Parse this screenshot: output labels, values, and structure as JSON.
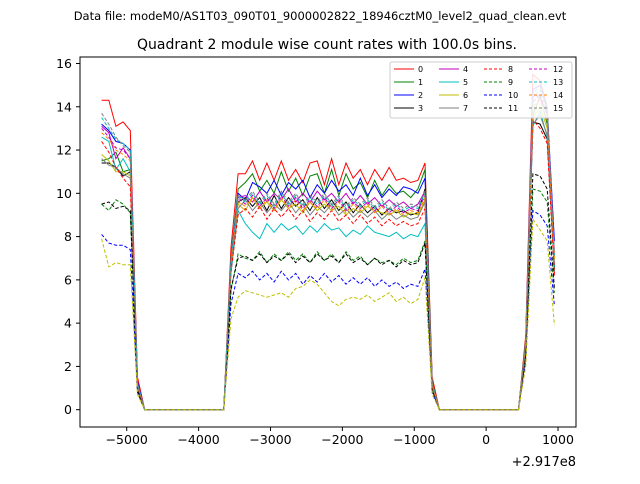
{
  "figure": {
    "suptitle": "Data file: modeM0/AS1T03_090T01_9000002822_18946cztM0_level2_quad_clean.evt",
    "offset_text": "+2.917e8"
  },
  "chart_data": {
    "type": "line",
    "title": "Quadrant 2 module wise count rates with 100.0s bins.",
    "xlabel": "",
    "ylabel": "",
    "xlim": [
      -5650,
      1250
    ],
    "ylim": [
      -0.8,
      16.3
    ],
    "xticks": [
      -5000,
      -4000,
      -3000,
      -2000,
      -1000,
      0,
      1000
    ],
    "xtick_labels": [
      "−5000",
      "−4000",
      "−3000",
      "−2000",
      "−1000",
      "0",
      "1000"
    ],
    "yticks": [
      0,
      2,
      4,
      6,
      8,
      10,
      12,
      14,
      16
    ],
    "ytick_labels": [
      "0",
      "2",
      "4",
      "6",
      "8",
      "10",
      "12",
      "14",
      "16"
    ],
    "grid": false,
    "legend_placement": "top-right",
    "x": [
      -5350,
      -5250,
      -5150,
      -5050,
      -4950,
      -4850,
      -4750,
      -4650,
      -4550,
      -4450,
      -4350,
      -4250,
      -4150,
      -4050,
      -3950,
      -3850,
      -3750,
      -3650,
      -3550,
      -3450,
      -3350,
      -3250,
      -3150,
      -3050,
      -2950,
      -2850,
      -2750,
      -2650,
      -2550,
      -2450,
      -2350,
      -2250,
      -2150,
      -2050,
      -1950,
      -1850,
      -1750,
      -1650,
      -1550,
      -1450,
      -1350,
      -1250,
      -1150,
      -1050,
      -950,
      -850,
      -750,
      -650,
      -550,
      -450,
      -350,
      -250,
      -150,
      -50,
      50,
      150,
      250,
      350,
      450,
      550,
      650,
      750,
      850,
      950
    ],
    "series": [
      {
        "name": "0",
        "color": "#ff0000",
        "dash": false,
        "values": [
          14.3,
          14.3,
          13.1,
          13.3,
          12.9,
          1.5,
          0,
          0,
          0,
          0,
          0,
          0,
          0,
          0,
          0,
          0,
          0,
          0,
          7.5,
          10.9,
          10.9,
          11.5,
          10.6,
          11.4,
          10.6,
          11.5,
          10.6,
          11.1,
          10.5,
          11.4,
          11.5,
          10.4,
          11.6,
          10.4,
          11.4,
          10.7,
          11.1,
          10.4,
          11.1,
          10.6,
          11.2,
          10.6,
          10.7,
          10.5,
          10.6,
          11.4,
          1.5,
          0,
          0,
          0,
          0,
          0,
          0,
          0,
          0,
          0,
          0,
          0,
          0,
          3.4,
          15.5,
          15.2,
          14.0,
          6.2
        ]
      },
      {
        "name": "1",
        "color": "#008000",
        "dash": false,
        "values": [
          11.5,
          11.6,
          11.9,
          11.0,
          11.1,
          1.2,
          0,
          0,
          0,
          0,
          0,
          0,
          0,
          0,
          0,
          0,
          0,
          0,
          7.0,
          10.2,
          10.5,
          10.9,
          10.1,
          10.6,
          10.0,
          11.0,
          10.1,
          10.7,
          9.9,
          10.8,
          10.9,
          10.0,
          11.1,
          9.9,
          10.9,
          10.2,
          10.5,
          9.8,
          10.6,
          9.9,
          10.4,
          10.0,
          10.1,
          9.8,
          10.2,
          11.1,
          1.3,
          0,
          0,
          0,
          0,
          0,
          0,
          0,
          0,
          0,
          0,
          0,
          0,
          3.2,
          13.6,
          14.5,
          13.2,
          6.5
        ]
      },
      {
        "name": "2",
        "color": "#0000ff",
        "dash": false,
        "values": [
          13.2,
          12.9,
          12.4,
          12.3,
          12.0,
          1.3,
          0,
          0,
          0,
          0,
          0,
          0,
          0,
          0,
          0,
          0,
          0,
          0,
          6.9,
          10.0,
          9.7,
          10.5,
          10.3,
          10.0,
          10.6,
          9.9,
          10.5,
          10.2,
          10.6,
          9.8,
          10.4,
          10.0,
          10.6,
          10.1,
          10.4,
          9.9,
          10.7,
          9.9,
          10.4,
          9.8,
          10.2,
          9.9,
          10.3,
          10.2,
          10.0,
          10.7,
          1.2,
          0,
          0,
          0,
          0,
          0,
          0,
          0,
          0,
          0,
          0,
          0,
          0,
          3.1,
          14.8,
          15.0,
          13.9,
          7.8
        ]
      },
      {
        "name": "3",
        "color": "#000000",
        "dash": false,
        "values": [
          11.4,
          11.4,
          11.2,
          10.8,
          11.0,
          1.1,
          0,
          0,
          0,
          0,
          0,
          0,
          0,
          0,
          0,
          0,
          0,
          0,
          6.8,
          9.6,
          9.8,
          9.4,
          9.8,
          9.2,
          9.9,
          9.3,
          9.8,
          9.4,
          9.7,
          9.2,
          9.8,
          9.3,
          9.7,
          9.2,
          9.6,
          9.1,
          9.5,
          9.1,
          9.4,
          9.0,
          9.3,
          9.1,
          9.2,
          9.0,
          9.1,
          10.2,
          1.1,
          0,
          0,
          0,
          0,
          0,
          0,
          0,
          0,
          0,
          0,
          0,
          0,
          2.9,
          13.3,
          13.2,
          12.5,
          6.6
        ]
      },
      {
        "name": "4",
        "color": "#bf00bf",
        "dash": false,
        "values": [
          13.1,
          12.8,
          11.6,
          12.1,
          11.6,
          1.2,
          0,
          0,
          0,
          0,
          0,
          0,
          0,
          0,
          0,
          0,
          0,
          0,
          6.8,
          9.8,
          9.9,
          9.6,
          10.1,
          9.6,
          10.0,
          9.7,
          10.2,
          9.6,
          10.0,
          9.6,
          10.1,
          9.7,
          10.0,
          9.6,
          10.0,
          9.5,
          9.9,
          9.5,
          9.8,
          9.4,
          9.7,
          9.4,
          9.6,
          9.3,
          9.5,
          10.1,
          1.2,
          0,
          0,
          0,
          0,
          0,
          0,
          0,
          0,
          0,
          0,
          0,
          0,
          3.0,
          14.6,
          14.4,
          13.7,
          7.2
        ]
      },
      {
        "name": "5",
        "color": "#00bfbf",
        "dash": false,
        "values": [
          12.6,
          12.4,
          11.1,
          11.6,
          11.0,
          1.0,
          0,
          0,
          0,
          0,
          0,
          0,
          0,
          0,
          0,
          0,
          0,
          0,
          6.3,
          9.2,
          8.6,
          8.2,
          7.9,
          8.6,
          8.2,
          8.6,
          8.3,
          8.5,
          8.1,
          8.5,
          8.2,
          8.6,
          8.3,
          8.4,
          8.0,
          8.3,
          8.1,
          8.5,
          8.2,
          8.1,
          8.0,
          8.2,
          7.9,
          8.1,
          8.0,
          8.6,
          1.0,
          0,
          0,
          0,
          0,
          0,
          0,
          0,
          0,
          0,
          0,
          0,
          0,
          2.8,
          13.1,
          13.8,
          12.6,
          6.4
        ]
      },
      {
        "name": "6",
        "color": "#bfbf00",
        "dash": false,
        "values": [
          11.8,
          11.5,
          11.0,
          11.0,
          10.8,
          1.1,
          0,
          0,
          0,
          0,
          0,
          0,
          0,
          0,
          0,
          0,
          0,
          0,
          6.7,
          9.5,
          9.2,
          9.8,
          9.3,
          9.6,
          9.2,
          9.7,
          9.3,
          9.5,
          9.1,
          9.6,
          9.2,
          9.5,
          9.2,
          9.4,
          9.0,
          9.3,
          9.1,
          9.4,
          9.2,
          9.1,
          9.0,
          9.2,
          8.9,
          9.1,
          9.0,
          9.7,
          1.1,
          0,
          0,
          0,
          0,
          0,
          0,
          0,
          0,
          0,
          0,
          0,
          0,
          2.9,
          13.5,
          14.0,
          13.0,
          6.9
        ]
      },
      {
        "name": "7",
        "color": "#808080",
        "dash": false,
        "values": [
          11.6,
          11.3,
          11.2,
          10.9,
          10.7,
          1.1,
          0,
          0,
          0,
          0,
          0,
          0,
          0,
          0,
          0,
          0,
          0,
          0,
          6.7,
          9.3,
          9.7,
          9.2,
          9.6,
          9.1,
          9.5,
          9.2,
          9.6,
          9.1,
          9.5,
          9.0,
          9.4,
          9.1,
          9.5,
          9.0,
          9.3,
          8.9,
          9.2,
          8.9,
          9.2,
          8.8,
          9.1,
          8.8,
          9.0,
          8.8,
          8.9,
          9.6,
          1.1,
          0,
          0,
          0,
          0,
          0,
          0,
          0,
          0,
          0,
          0,
          0,
          0,
          2.9,
          13.2,
          13.6,
          12.7,
          6.7
        ]
      },
      {
        "name": "8",
        "color": "#ff0000",
        "dash": true,
        "values": [
          12.4,
          11.9,
          11.2,
          10.7,
          10.3,
          1.0,
          0,
          0,
          0,
          0,
          0,
          0,
          0,
          0,
          0,
          0,
          0,
          0,
          6.4,
          9.0,
          9.3,
          8.9,
          9.4,
          8.8,
          9.3,
          8.9,
          9.3,
          8.8,
          9.2,
          8.7,
          9.1,
          8.8,
          9.2,
          8.7,
          9.0,
          8.6,
          9.0,
          8.6,
          8.9,
          8.5,
          8.8,
          8.5,
          8.7,
          8.5,
          8.6,
          9.3,
          1.0,
          0,
          0,
          0,
          0,
          0,
          0,
          0,
          0,
          0,
          0,
          0,
          0,
          2.8,
          13.4,
          13.0,
          12.3,
          6.3
        ]
      },
      {
        "name": "9",
        "color": "#008000",
        "dash": true,
        "values": [
          9.5,
          9.2,
          9.7,
          9.5,
          9.1,
          0.9,
          0,
          0,
          0,
          0,
          0,
          0,
          0,
          0,
          0,
          0,
          0,
          0,
          5.5,
          7.2,
          7.0,
          6.9,
          7.3,
          6.8,
          7.2,
          6.9,
          7.3,
          6.9,
          7.2,
          6.8,
          7.3,
          6.9,
          7.2,
          6.8,
          7.3,
          6.9,
          7.1,
          6.7,
          7.0,
          6.8,
          6.9,
          6.7,
          7.0,
          6.8,
          6.9,
          7.8,
          0.9,
          0,
          0,
          0,
          0,
          0,
          0,
          0,
          0,
          0,
          0,
          0,
          0,
          2.5,
          10.2,
          10.1,
          9.6,
          5.4
        ]
      },
      {
        "name": "10",
        "color": "#0000ff",
        "dash": true,
        "values": [
          8.1,
          7.7,
          7.6,
          7.6,
          7.4,
          0.8,
          0,
          0,
          0,
          0,
          0,
          0,
          0,
          0,
          0,
          0,
          0,
          0,
          4.9,
          6.3,
          6.1,
          6.4,
          6.0,
          6.3,
          5.9,
          6.4,
          6.0,
          6.3,
          5.8,
          6.2,
          5.9,
          6.3,
          5.9,
          6.2,
          5.8,
          6.1,
          5.8,
          6.1,
          5.7,
          6.0,
          5.7,
          5.9,
          5.6,
          5.8,
          5.7,
          6.5,
          0.8,
          0,
          0,
          0,
          0,
          0,
          0,
          0,
          0,
          0,
          0,
          0,
          0,
          2.2,
          9.2,
          9.0,
          8.5,
          4.8
        ]
      },
      {
        "name": "11",
        "color": "#000000",
        "dash": true,
        "values": [
          9.5,
          9.6,
          9.3,
          9.4,
          9.2,
          0.9,
          0,
          0,
          0,
          0,
          0,
          0,
          0,
          0,
          0,
          0,
          0,
          0,
          5.6,
          7.0,
          7.1,
          6.9,
          7.2,
          6.8,
          7.1,
          6.9,
          7.2,
          6.8,
          7.1,
          6.8,
          7.2,
          6.9,
          7.1,
          6.8,
          7.2,
          6.8,
          7.0,
          6.7,
          7.0,
          6.7,
          6.9,
          6.6,
          6.9,
          6.7,
          6.8,
          7.7,
          0.9,
          0,
          0,
          0,
          0,
          0,
          0,
          0,
          0,
          0,
          0,
          0,
          0,
          2.5,
          10.9,
          10.8,
          10.2,
          5.6
        ]
      },
      {
        "name": "12",
        "color": "#bf00bf",
        "dash": true,
        "values": [
          13.0,
          12.6,
          12.1,
          12.0,
          11.6,
          1.1,
          0,
          0,
          0,
          0,
          0,
          0,
          0,
          0,
          0,
          0,
          0,
          0,
          6.8,
          9.8,
          9.5,
          9.9,
          9.4,
          9.8,
          9.3,
          9.9,
          9.4,
          9.8,
          9.3,
          9.7,
          9.4,
          9.8,
          9.3,
          9.7,
          9.2,
          9.6,
          9.3,
          9.6,
          9.2,
          9.5,
          9.1,
          9.4,
          9.1,
          9.3,
          9.2,
          9.9,
          1.1,
          0,
          0,
          0,
          0,
          0,
          0,
          0,
          0,
          0,
          0,
          0,
          0,
          3.0,
          14.2,
          14.6,
          13.6,
          7.0
        ]
      },
      {
        "name": "13",
        "color": "#00bfbf",
        "dash": true,
        "values": [
          13.5,
          13.0,
          12.5,
          12.3,
          12.0,
          1.2,
          0,
          0,
          0,
          0,
          0,
          0,
          0,
          0,
          0,
          0,
          0,
          0,
          6.9,
          9.9,
          9.6,
          10.0,
          9.5,
          9.9,
          9.4,
          10.0,
          9.5,
          9.9,
          9.4,
          9.8,
          9.5,
          9.9,
          9.4,
          9.8,
          9.3,
          9.7,
          9.4,
          9.7,
          9.3,
          9.6,
          9.2,
          9.5,
          9.2,
          9.4,
          9.3,
          10.0,
          1.2,
          0,
          0,
          0,
          0,
          0,
          0,
          0,
          0,
          0,
          0,
          0,
          0,
          3.1,
          14.4,
          14.8,
          13.8,
          7.1
        ]
      },
      {
        "name": "14",
        "color": "#ff8000",
        "dash": true,
        "values": [
          12.8,
          12.5,
          12.0,
          11.8,
          11.5,
          1.1,
          0,
          0,
          0,
          0,
          0,
          0,
          0,
          0,
          0,
          0,
          0,
          0,
          6.7,
          9.6,
          9.4,
          9.8,
          9.3,
          9.7,
          9.2,
          9.8,
          9.3,
          9.7,
          9.2,
          9.6,
          9.3,
          9.7,
          9.2,
          9.6,
          9.1,
          9.5,
          9.2,
          9.5,
          9.1,
          9.4,
          9.0,
          9.3,
          9.0,
          9.2,
          9.1,
          9.8,
          1.1,
          0,
          0,
          0,
          0,
          0,
          0,
          0,
          0,
          0,
          0,
          0,
          0,
          3.0,
          14.0,
          14.3,
          13.4,
          6.9
        ]
      },
      {
        "name": "15",
        "color": "#808080",
        "dash": true,
        "values": [
          13.7,
          13.2,
          12.6,
          12.2,
          11.9,
          1.2,
          0,
          0,
          0,
          0,
          0,
          0,
          0,
          0,
          0,
          0,
          0,
          0,
          6.9,
          9.9,
          9.7,
          10.1,
          9.6,
          10.0,
          9.5,
          10.1,
          9.6,
          10.0,
          9.5,
          9.9,
          9.6,
          10.0,
          9.5,
          9.9,
          9.4,
          9.8,
          9.5,
          9.8,
          9.4,
          9.7,
          9.3,
          9.6,
          9.3,
          9.5,
          9.4,
          10.1,
          1.2,
          0,
          0,
          0,
          0,
          0,
          0,
          0,
          0,
          0,
          0,
          0,
          0,
          3.1,
          14.6,
          15.0,
          14.0,
          7.3
        ]
      },
      {
        "name": "",
        "color": "#bfbf00",
        "dash": true,
        "values": [
          7.9,
          6.6,
          6.8,
          6.7,
          6.7,
          0.7,
          0,
          0,
          0,
          0,
          0,
          0,
          0,
          0,
          0,
          0,
          0,
          0,
          4.2,
          5.2,
          5.5,
          5.4,
          5.3,
          5.2,
          5.3,
          5.4,
          5.2,
          5.6,
          5.7,
          6.0,
          5.8,
          5.4,
          5.0,
          4.8,
          5.1,
          5.2,
          5.1,
          5.3,
          5.0,
          5.2,
          5.4,
          5.0,
          5.2,
          4.9,
          5.1,
          6.1,
          0.7,
          0,
          0,
          0,
          0,
          0,
          0,
          0,
          0,
          0,
          0,
          0,
          0,
          2.0,
          8.8,
          8.3,
          7.8,
          3.9
        ]
      }
    ]
  }
}
